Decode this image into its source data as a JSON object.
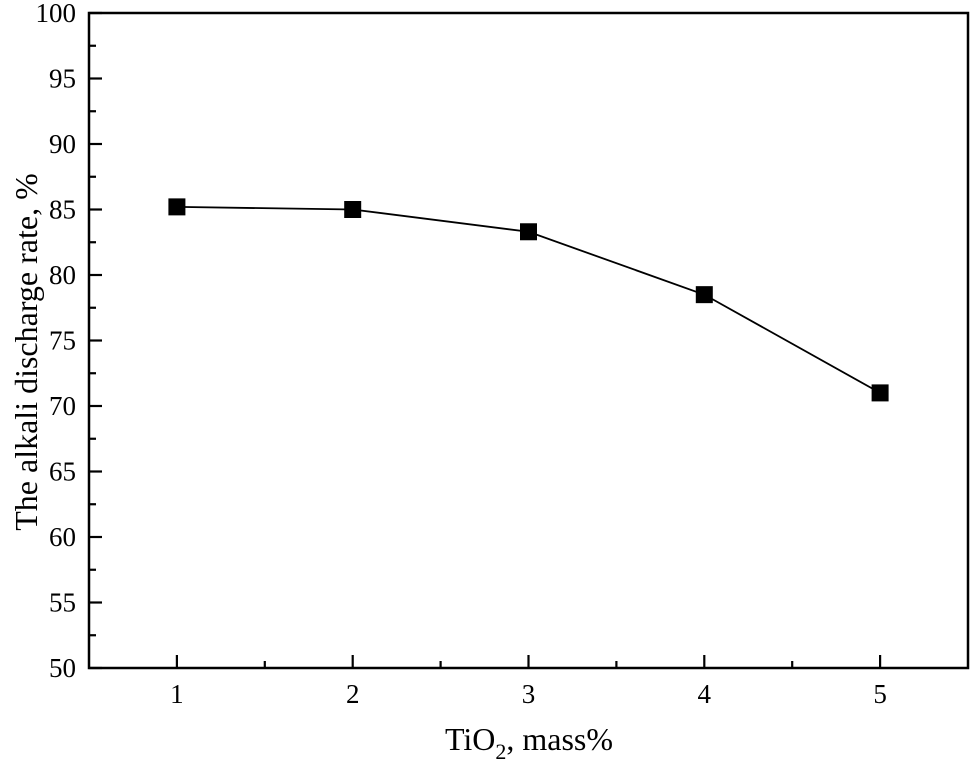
{
  "figure": {
    "background": "#ffffff",
    "ink_color": "#000000"
  },
  "chart_data": {
    "type": "line",
    "title": "",
    "xlabel": {
      "main": "TiO",
      "sub": "2",
      "rest": ", mass%"
    },
    "ylabel": "The alkali discharge rate, %",
    "x": [
      1,
      2,
      3,
      4,
      5
    ],
    "y": [
      85.2,
      85.0,
      83.3,
      78.5,
      71.0
    ],
    "series": [
      {
        "name": "alkali discharge rate",
        "marker": "filled-square",
        "color": "#000000"
      }
    ],
    "xlim": [
      0.5,
      5.5
    ],
    "ylim": [
      50,
      100
    ],
    "x_major_ticks": [
      1,
      2,
      3,
      4,
      5
    ],
    "x_minor_ticks": [
      1.5,
      2.5,
      3.5,
      4.5
    ],
    "y_major_ticks": [
      50,
      55,
      60,
      65,
      70,
      75,
      80,
      85,
      90,
      95,
      100
    ],
    "y_minor_ticks": [
      52.5,
      57.5,
      62.5,
      67.5,
      72.5,
      77.5,
      82.5,
      87.5,
      92.5,
      97.5
    ],
    "tick_direction": "in",
    "grid": false,
    "legend": "none"
  }
}
